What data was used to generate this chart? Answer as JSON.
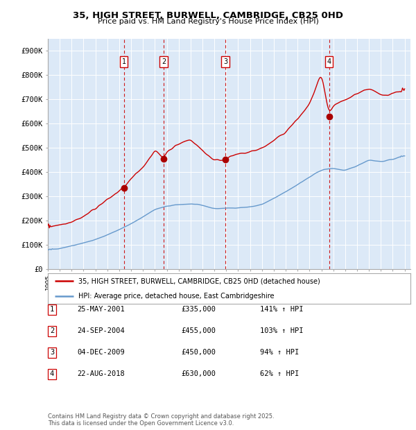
{
  "title": "35, HIGH STREET, BURWELL, CAMBRIDGE, CB25 0HD",
  "subtitle": "Price paid vs. HM Land Registry's House Price Index (HPI)",
  "ylim": [
    0,
    950000
  ],
  "yticks": [
    0,
    100000,
    200000,
    300000,
    400000,
    500000,
    600000,
    700000,
    800000,
    900000
  ],
  "ytick_labels": [
    "£0",
    "£100K",
    "£200K",
    "£300K",
    "£400K",
    "£500K",
    "£600K",
    "£700K",
    "£800K",
    "£900K"
  ],
  "xlim_start": 1995.0,
  "xlim_end": 2025.5,
  "background_color": "#ffffff",
  "plot_bg_color": "#dce9f7",
  "grid_color": "#ffffff",
  "transactions": [
    {
      "num": 1,
      "date": "25-MAY-2001",
      "year": 2001.39,
      "price": 335000,
      "pct": "141%"
    },
    {
      "num": 2,
      "date": "24-SEP-2004",
      "year": 2004.73,
      "price": 455000,
      "pct": "103%"
    },
    {
      "num": 3,
      "date": "04-DEC-2009",
      "year": 2009.92,
      "price": 450000,
      "pct": "94%"
    },
    {
      "num": 4,
      "date": "22-AUG-2018",
      "year": 2018.64,
      "price": 630000,
      "pct": "62%"
    }
  ],
  "red_line_color": "#cc0000",
  "blue_line_color": "#6699cc",
  "marker_color": "#aa0000",
  "dashed_line_color": "#cc0000",
  "label_box_color": "#cc0000",
  "legend_label_red": "35, HIGH STREET, BURWELL, CAMBRIDGE, CB25 0HD (detached house)",
  "legend_label_blue": "HPI: Average price, detached house, East Cambridgeshire",
  "footer": "Contains HM Land Registry data © Crown copyright and database right 2025.\nThis data is licensed under the Open Government Licence v3.0.",
  "table_rows": [
    [
      "1",
      "25-MAY-2001",
      "£335,000",
      "141% ↑ HPI"
    ],
    [
      "2",
      "24-SEP-2004",
      "£455,000",
      "103% ↑ HPI"
    ],
    [
      "3",
      "04-DEC-2009",
      "£450,000",
      "94% ↑ HPI"
    ],
    [
      "4",
      "22-AUG-2018",
      "£630,000",
      "62% ↑ HPI"
    ]
  ],
  "hpi_waypoints_x": [
    1995,
    1996,
    1997,
    1998,
    1999,
    2000,
    2001,
    2002,
    2003,
    2004,
    2005,
    2006,
    2007,
    2008,
    2009,
    2010,
    2011,
    2012,
    2013,
    2014,
    2015,
    2016,
    2017,
    2018,
    2019,
    2020,
    2021,
    2022,
    2023,
    2024,
    2025
  ],
  "hpi_waypoints_y": [
    78000,
    84000,
    95000,
    107000,
    120000,
    140000,
    162000,
    185000,
    215000,
    245000,
    258000,
    265000,
    268000,
    262000,
    248000,
    250000,
    252000,
    255000,
    265000,
    290000,
    318000,
    348000,
    378000,
    408000,
    415000,
    405000,
    425000,
    450000,
    442000,
    452000,
    468000
  ],
  "prop_waypoints_x": [
    1995,
    1996,
    1997,
    1998,
    1999,
    2000,
    2001.39,
    2002,
    2003,
    2004,
    2004.73,
    2005,
    2006,
    2007,
    2008,
    2009,
    2009.92,
    2010,
    2011,
    2012,
    2013,
    2014,
    2015,
    2016,
    2017,
    2018,
    2018.64,
    2019,
    2020,
    2021,
    2022,
    2023,
    2024,
    2025
  ],
  "prop_waypoints_y": [
    175000,
    182000,
    195000,
    215000,
    250000,
    285000,
    335000,
    370000,
    420000,
    490000,
    455000,
    485000,
    515000,
    535000,
    488000,
    448000,
    450000,
    458000,
    472000,
    482000,
    498000,
    528000,
    565000,
    618000,
    678000,
    808000,
    630000,
    675000,
    695000,
    725000,
    745000,
    715000,
    725000,
    740000
  ]
}
